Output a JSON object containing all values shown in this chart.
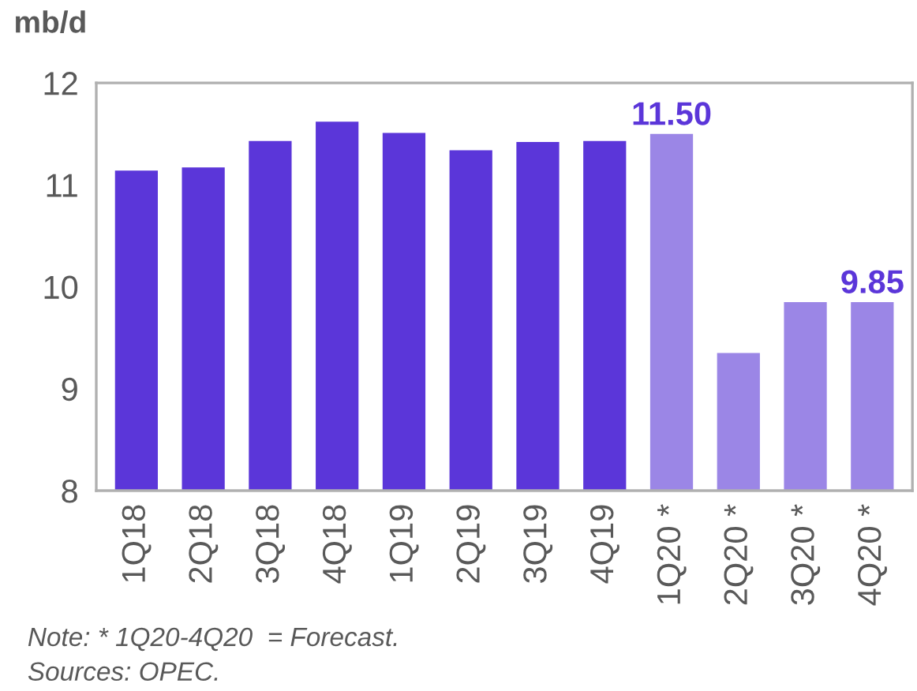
{
  "chart_data": {
    "type": "bar",
    "ylabel": "mb/d",
    "categories": [
      "1Q18",
      "2Q18",
      "3Q18",
      "4Q18",
      "1Q19",
      "2Q19",
      "3Q19",
      "4Q19",
      "1Q20 *",
      "2Q20 *",
      "3Q20 *",
      "4Q20 *"
    ],
    "values": [
      11.14,
      11.17,
      11.43,
      11.62,
      11.51,
      11.34,
      11.42,
      11.43,
      11.5,
      9.35,
      9.85,
      9.85
    ],
    "colors": [
      "#5b36d9",
      "#5b36d9",
      "#5b36d9",
      "#5b36d9",
      "#5b36d9",
      "#5b36d9",
      "#5b36d9",
      "#5b36d9",
      "#9b86e6",
      "#9b86e6",
      "#9b86e6",
      "#9b86e6"
    ],
    "value_labels": [
      null,
      null,
      null,
      null,
      null,
      null,
      null,
      null,
      "11.50",
      null,
      null,
      "9.85"
    ],
    "ylim": [
      8,
      12
    ],
    "yticks": [
      8,
      9,
      10,
      11,
      12
    ],
    "grid": false,
    "annotations": [
      "Note: * 1Q20-4Q20  = Forecast.",
      "Sources: OPEC."
    ]
  }
}
